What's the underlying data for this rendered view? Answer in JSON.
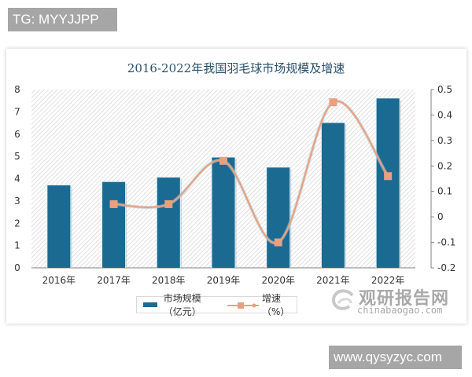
{
  "watermarks": {
    "top_tag": "TG: MYYJJPP",
    "bottom_tag": "www.qysyzyc.com",
    "logo_text": "观研报告网",
    "logo_url_text": "chinabaogao.com"
  },
  "chart_data": {
    "type": "bar+line",
    "title": "2016-2022年我国羽毛球市场规模及增速",
    "categories": [
      "2016年",
      "2017年",
      "2018年",
      "2019年",
      "2020年",
      "2021年",
      "2022年"
    ],
    "series": [
      {
        "name": "市场规模（亿元）",
        "type": "bar",
        "axis": "left",
        "color": "#1b6a92",
        "values": [
          3.7,
          3.85,
          4.05,
          4.95,
          4.5,
          6.5,
          7.6
        ]
      },
      {
        "name": "增速（%）",
        "type": "line",
        "axis": "right",
        "color": "#e8a07f",
        "values": [
          null,
          0.05,
          0.05,
          0.22,
          -0.1,
          0.45,
          0.16
        ]
      }
    ],
    "left_axis": {
      "ylim": [
        0,
        8
      ],
      "ticks": [
        "0",
        "1",
        "2",
        "3",
        "4",
        "5",
        "6",
        "7",
        "8"
      ]
    },
    "right_axis": {
      "ylim": [
        -0.2,
        0.5
      ],
      "ticks": [
        "0.5",
        "0.4",
        "0.3",
        "0.2",
        "0.1",
        "0",
        "-0.1",
        "-0.2"
      ]
    },
    "grid": false,
    "background": "diagonal hatch",
    "legend_position": "bottom"
  },
  "legend": {
    "bar_label": "市场规模（亿元）",
    "line_label": "增速（%）"
  }
}
